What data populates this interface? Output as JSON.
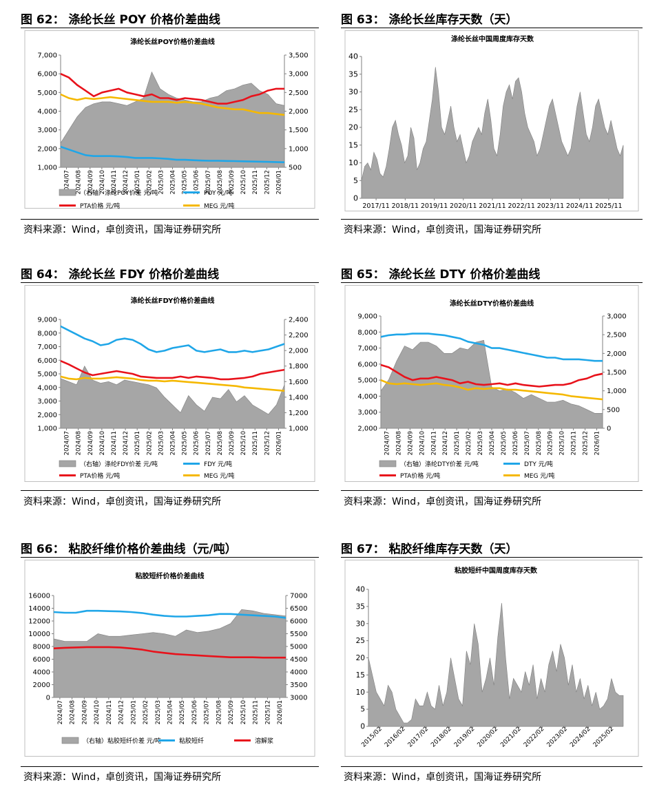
{
  "panels": [
    {
      "figure_title": "图 62：  涤纶长丝 POY 价格价差曲线",
      "source": "资料来源：Wind，卓创资讯，国海证券研究所",
      "chart_data": {
        "type": "line",
        "title": "涤纶长丝POY价格价差曲线",
        "x_ticks": [
          "2024/07",
          "2024/08",
          "2024/09",
          "2024/10",
          "2024/11",
          "2024/12",
          "2025/01",
          "2025/02",
          "2025/03",
          "2025/04",
          "2025/05",
          "2025/06",
          "2025/07",
          "2025/08",
          "2025/09",
          "2025/10",
          "2025/11",
          "2025/12",
          "2026/01"
        ],
        "ylim": [
          1000,
          7000
        ],
        "y_ticks": [
          "1,000",
          "2,000",
          "3,000",
          "4,000",
          "5,000",
          "6,000",
          "7,000"
        ],
        "y2lim": [
          500,
          3500
        ],
        "y2_ticks": [
          "500",
          "1,000",
          "1,500",
          "2,000",
          "2,500",
          "3,000",
          "3,500"
        ],
        "series": [
          {
            "name": "（右轴）涤纶POY价差  元/吨",
            "type": "area",
            "axis": "right",
            "color": "#a6a6a6",
            "values": [
              1150,
              1500,
              1850,
              2100,
              2200,
              2250,
              2250,
              2200,
              2150,
              2250,
              2350,
              3050,
              2600,
              2450,
              2350,
              2300,
              2250,
              2250,
              2350,
              2400,
              2550,
              2600,
              2700,
              2750,
              2550,
              2450,
              2200,
              2150
            ]
          },
          {
            "name": "POY  元/吨",
            "type": "line",
            "axis": "left",
            "color": "#1fa6e8",
            "values": [
              2100,
              1950,
              1800,
              1650,
              1600,
              1600,
              1600,
              1580,
              1550,
              1500,
              1500,
              1500,
              1480,
              1450,
              1400,
              1400,
              1380,
              1360,
              1350,
              1350,
              1340,
              1330,
              1320,
              1310,
              1300,
              1290,
              1280,
              1270
            ]
          },
          {
            "name": "PTA价格  元/吨",
            "type": "line",
            "axis": "left",
            "color": "#e8121b",
            "values": [
              6000,
              5800,
              5400,
              5100,
              4800,
              5000,
              5100,
              5200,
              5000,
              4900,
              4800,
              4900,
              4700,
              4700,
              4600,
              4700,
              4650,
              4600,
              4500,
              4400,
              4400,
              4500,
              4600,
              4800,
              4900,
              5100,
              5200,
              5200
            ]
          },
          {
            "name": "MEG  元/吨",
            "type": "line",
            "axis": "left",
            "color": "#f5b800",
            "values": [
              4900,
              4700,
              4600,
              4700,
              4650,
              4700,
              4750,
              4700,
              4650,
              4600,
              4550,
              4500,
              4500,
              4500,
              4450,
              4500,
              4450,
              4400,
              4300,
              4200,
              4150,
              4100,
              4100,
              4000,
              3900,
              3900,
              3850,
              3800
            ]
          }
        ]
      }
    },
    {
      "figure_title": "图 63：  涤纶长丝库存天数（天）",
      "source": "资料来源：Wind，卓创资讯，国海证券研究所",
      "chart_data": {
        "type": "area",
        "title": "涤纶长丝中国周度库存天数",
        "x_ticks": [
          "2017/11",
          "2018/11",
          "2019/11",
          "2020/11",
          "2021/11",
          "2022/11",
          "2023/11",
          "2024/11",
          "2025/11"
        ],
        "ylim": [
          0,
          40
        ],
        "y_ticks": [
          "0",
          "5",
          "10",
          "15",
          "20",
          "25",
          "30",
          "35",
          "40"
        ],
        "series": [
          {
            "name": "库存天数",
            "color": "#a6a6a6",
            "values": [
              5,
              9,
              10,
              8,
              13,
              11,
              7,
              6,
              9,
              14,
              20,
              22,
              18,
              15,
              10,
              12,
              20,
              17,
              8,
              10,
              14,
              16,
              22,
              28,
              37,
              30,
              20,
              18,
              22,
              26,
              20,
              16,
              18,
              14,
              10,
              12,
              16,
              18,
              20,
              18,
              24,
              28,
              22,
              14,
              12,
              18,
              26,
              30,
              32,
              28,
              33,
              34,
              30,
              24,
              20,
              18,
              16,
              12,
              14,
              18,
              22,
              26,
              28,
              24,
              20,
              16,
              14,
              12,
              14,
              20,
              26,
              30,
              24,
              18,
              16,
              20,
              26,
              28,
              24,
              20,
              18,
              22,
              18,
              14,
              12,
              15
            ]
          }
        ]
      }
    },
    {
      "figure_title": "图 64：  涤纶长丝 FDY 价格价差曲线",
      "source": "资料来源：Wind，卓创资讯，国海证券研究所",
      "chart_data": {
        "type": "line",
        "title": "涤纶长丝FDY价格价差曲线",
        "x_ticks": [
          "2024/07",
          "2024/08",
          "2024/09",
          "2024/10",
          "2024/11",
          "2024/12",
          "2025/01",
          "2025/02",
          "2025/03",
          "2025/04",
          "2025/05",
          "2025/06",
          "2025/07",
          "2025/08",
          "2025/09",
          "2025/10",
          "2025/11",
          "2025/12",
          "2026/01"
        ],
        "ylim": [
          1000,
          9000
        ],
        "y_ticks": [
          "1,000",
          "2,000",
          "3,000",
          "4,000",
          "5,000",
          "6,000",
          "7,000",
          "8,000",
          "9,000"
        ],
        "y2lim": [
          1000,
          2400
        ],
        "y2_ticks": [
          "1,000",
          "1,200",
          "1,400",
          "1,600",
          "1,800",
          "2,000",
          "2,200",
          "2,400"
        ],
        "series": [
          {
            "name": "（右轴）涤纶FDY价差  元/吨",
            "type": "area",
            "axis": "right",
            "color": "#a6a6a6",
            "values": [
              1640,
              1600,
              1560,
              1800,
              1620,
              1580,
              1600,
              1560,
              1620,
              1600,
              1580,
              1560,
              1520,
              1400,
              1300,
              1200,
              1420,
              1300,
              1220,
              1400,
              1380,
              1500,
              1340,
              1420,
              1300,
              1240,
              1180,
              1300,
              1560
            ]
          },
          {
            "name": "FDY  元/吨",
            "type": "line",
            "axis": "left",
            "color": "#1fa6e8",
            "values": [
              8500,
              8200,
              7900,
              7600,
              7400,
              7100,
              7200,
              7500,
              7600,
              7500,
              7200,
              6800,
              6600,
              6700,
              6900,
              7000,
              7100,
              6700,
              6600,
              6700,
              6800,
              6600,
              6600,
              6700,
              6600,
              6700,
              6800,
              7000,
              7200
            ]
          },
          {
            "name": "PTA价格  元/吨",
            "type": "line",
            "axis": "left",
            "color": "#e8121b",
            "values": [
              5950,
              5700,
              5400,
              5100,
              4900,
              5000,
              5100,
              5200,
              5100,
              5000,
              4800,
              4750,
              4700,
              4700,
              4700,
              4800,
              4700,
              4800,
              4750,
              4700,
              4600,
              4600,
              4650,
              4700,
              4800,
              5000,
              5100,
              5200,
              5300
            ]
          },
          {
            "name": "MEG  元/吨",
            "type": "line",
            "axis": "left",
            "color": "#f5b800",
            "values": [
              4800,
              4650,
              4600,
              4700,
              4650,
              4650,
              4700,
              4750,
              4700,
              4650,
              4550,
              4500,
              4500,
              4450,
              4500,
              4450,
              4400,
              4350,
              4300,
              4250,
              4200,
              4150,
              4100,
              4000,
              3950,
              3900,
              3850,
              3800,
              3750
            ]
          }
        ]
      }
    },
    {
      "figure_title": "图 65：  涤纶长丝 DTY 价格价差曲线",
      "source": "资料来源：Wind，卓创资讯，国海证券研究所",
      "chart_data": {
        "type": "line",
        "title": "涤纶长丝DTY价格价差曲线",
        "x_ticks": [
          "2024/07",
          "2024/08",
          "2024/09",
          "2024/10",
          "2024/11",
          "2024/12",
          "2025/01",
          "2025/02",
          "2025/03",
          "2025/04",
          "2025/05",
          "2025/06",
          "2025/07",
          "2025/08",
          "2025/09",
          "2025/10",
          "2025/11",
          "2025/12",
          "2026/01"
        ],
        "ylim": [
          2000,
          9000
        ],
        "y_ticks": [
          "2,000",
          "3,000",
          "4,000",
          "5,000",
          "6,000",
          "7,000",
          "8,000",
          "9,000"
        ],
        "y2lim": [
          0,
          3000
        ],
        "y2_ticks": [
          "0",
          "500",
          "1,000",
          "1,500",
          "2,000",
          "2,500",
          "3,000"
        ],
        "series": [
          {
            "name": "（右轴）涤纶DTY价差  元/吨",
            "type": "area",
            "axis": "right",
            "color": "#a6a6a6",
            "values": [
              1000,
              1300,
              1800,
              2200,
              2100,
              2300,
              2300,
              2200,
              2000,
              2000,
              2150,
              2100,
              2300,
              2350,
              1100,
              1000,
              1050,
              950,
              800,
              900,
              800,
              700,
              700,
              750,
              650,
              600,
              500,
              400,
              400
            ]
          },
          {
            "name": "DTY  元/吨",
            "type": "line",
            "axis": "left",
            "color": "#1fa6e8",
            "values": [
              7700,
              7800,
              7850,
              7850,
              7900,
              7900,
              7900,
              7850,
              7800,
              7700,
              7600,
              7400,
              7300,
              7200,
              7000,
              7000,
              6900,
              6800,
              6700,
              6600,
              6500,
              6400,
              6400,
              6300,
              6300,
              6300,
              6250,
              6200,
              6200
            ]
          },
          {
            "name": "PTA价格  元/吨",
            "type": "line",
            "axis": "left",
            "color": "#e8121b",
            "values": [
              5950,
              5800,
              5500,
              5200,
              5000,
              5100,
              5100,
              5200,
              5100,
              5000,
              4800,
              4900,
              4750,
              4700,
              4750,
              4800,
              4700,
              4800,
              4700,
              4650,
              4600,
              4650,
              4700,
              4700,
              4800,
              5000,
              5100,
              5300,
              5400
            ]
          },
          {
            "name": "MEG  元/吨",
            "type": "line",
            "axis": "left",
            "color": "#f5b800",
            "values": [
              5000,
              4800,
              4750,
              4800,
              4750,
              4700,
              4750,
              4800,
              4700,
              4650,
              4550,
              4400,
              4500,
              4450,
              4500,
              4500,
              4400,
              4400,
              4350,
              4300,
              4250,
              4200,
              4150,
              4100,
              4000,
              3950,
              3900,
              3850,
              3800
            ]
          }
        ]
      }
    },
    {
      "figure_title": "图 66：  粘胶纤维价格价差曲线（元/吨）",
      "source": "资料来源：Wind，卓创资讯，国海证券研究所",
      "chart_data": {
        "type": "line",
        "title": "粘胶短纤价格价差曲线",
        "x_ticks": [
          "2024/07",
          "2024/08",
          "2024/09",
          "2024/10",
          "2024/11",
          "2024/12",
          "2025/01",
          "2025/02",
          "2025/03",
          "2025/04",
          "2025/05",
          "2025/06",
          "2025/07",
          "2025/08",
          "2025/09",
          "2025/10",
          "2025/11",
          "2025/12",
          "2026/01"
        ],
        "ylim": [
          0,
          16000
        ],
        "y_ticks": [
          "0",
          "2000",
          "4000",
          "6000",
          "8000",
          "10000",
          "12000",
          "14000",
          "16000"
        ],
        "y2lim": [
          3000,
          7000
        ],
        "y2_ticks": [
          "3000",
          "3500",
          "4000",
          "4500",
          "5000",
          "5500",
          "6000",
          "6500",
          "7000"
        ],
        "series": [
          {
            "name": "（右轴）粘胶短纤价差  元/吨",
            "type": "area",
            "axis": "right",
            "color": "#a6a6a6",
            "values": [
              5300,
              5200,
              5200,
              5200,
              5500,
              5400,
              5400,
              5450,
              5500,
              5550,
              5500,
              5400,
              5650,
              5550,
              5600,
              5700,
              5900,
              6450,
              6400,
              6300,
              6250,
              6200
            ]
          },
          {
            "name": "粘胶短纤",
            "type": "line",
            "axis": "left",
            "color": "#1fa6e8",
            "values": [
              13400,
              13300,
              13300,
              13600,
              13600,
              13550,
              13500,
              13400,
              13250,
              13000,
              12800,
              12700,
              12700,
              12800,
              12900,
              13100,
              13100,
              13000,
              12900,
              12800,
              12700,
              12500
            ]
          },
          {
            "name": "溶解浆",
            "type": "line",
            "axis": "left",
            "color": "#e8121b",
            "values": [
              7700,
              7800,
              7850,
              7900,
              7900,
              7900,
              7850,
              7700,
              7500,
              7200,
              7000,
              6800,
              6700,
              6600,
              6500,
              6400,
              6300,
              6300,
              6300,
              6250,
              6250,
              6250
            ]
          }
        ]
      }
    },
    {
      "figure_title": "图 67：  粘胶纤维库存天数（天）",
      "source": "资料来源：Wind，卓创资讯，国海证券研究所",
      "chart_data": {
        "type": "area",
        "title": "粘胶短纤中国周度库存天数",
        "x_ticks": [
          "2015/02",
          "2016/02",
          "2017/02",
          "2018/02",
          "2019/02",
          "2020/02",
          "2021/02",
          "2022/02",
          "2023/02",
          "2024/02",
          "2025/02"
        ],
        "ylim": [
          0,
          40
        ],
        "y_ticks": [
          "0",
          "5",
          "10",
          "15",
          "20",
          "25",
          "30",
          "35",
          "40"
        ],
        "series": [
          {
            "name": "库存天数",
            "color": "#a6a6a6",
            "values": [
              20,
              15,
              10,
              8,
              6,
              12,
              10,
              5,
              3,
              1,
              1,
              2,
              8,
              6,
              6,
              10,
              6,
              5,
              12,
              6,
              10,
              20,
              14,
              8,
              6,
              22,
              18,
              30,
              24,
              10,
              14,
              20,
              12,
              26,
              36,
              20,
              8,
              14,
              12,
              10,
              16,
              12,
              18,
              8,
              14,
              10,
              18,
              22,
              16,
              24,
              20,
              12,
              18,
              10,
              14,
              8,
              12,
              6,
              10,
              5,
              6,
              8,
              14,
              10,
              9,
              9
            ]
          }
        ]
      }
    }
  ]
}
